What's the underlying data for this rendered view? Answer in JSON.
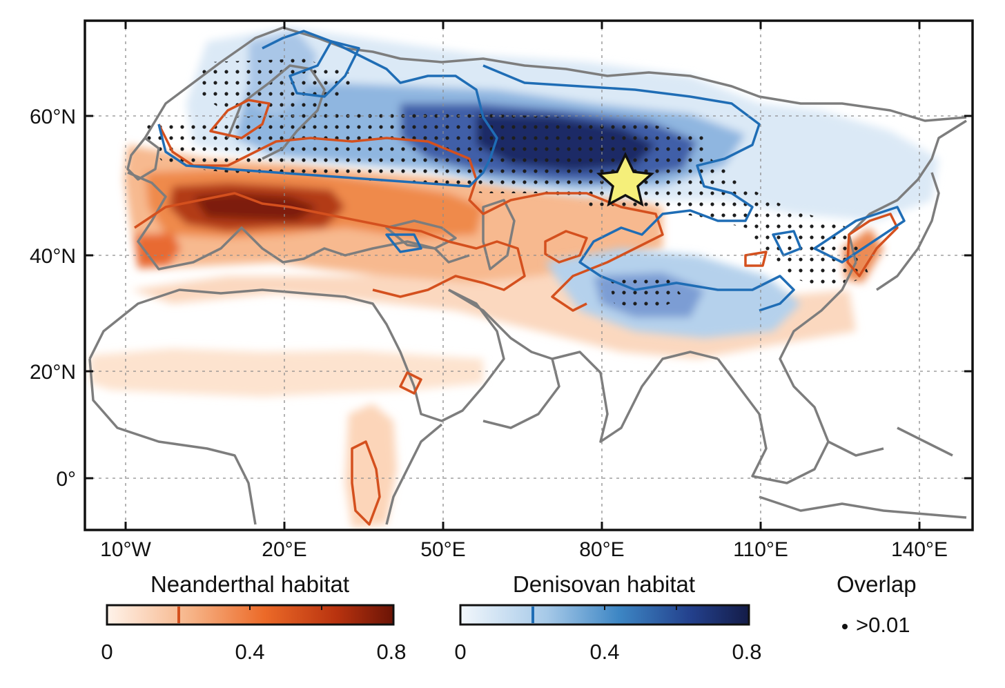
{
  "map": {
    "x_axis_labels": [
      "10°W",
      "20°E",
      "50°E",
      "80°E",
      "110°E",
      "140°E"
    ],
    "y_axis_labels": [
      "60°N",
      "40°N",
      "20°N",
      "0°"
    ],
    "grid": "dotted",
    "marker": {
      "icon": "star-icon",
      "color": "#f5ef7a",
      "lon": 84,
      "lat": 51
    }
  },
  "legend": {
    "neanderthal": {
      "title": "Neanderthal habitat",
      "ticks": [
        "0",
        "0.4",
        "0.8"
      ],
      "range": [
        0,
        0.8
      ],
      "marked_value": 0.2,
      "colors": [
        "#fff3ea",
        "#f6b285",
        "#ec6a28",
        "#b9330f",
        "#6b1406"
      ],
      "contour_color": "#d4501e"
    },
    "denisovan": {
      "title": "Denisovan habitat",
      "ticks": [
        "0",
        "0.4",
        "0.8"
      ],
      "range": [
        0,
        0.8
      ],
      "marked_value": 0.2,
      "colors": [
        "#f2f7fc",
        "#a6c9e8",
        "#3d86c4",
        "#23408c",
        "#141c48"
      ],
      "contour_color": "#1f6db5"
    },
    "overlap": {
      "title": "Overlap",
      "label": ">0.01"
    }
  }
}
